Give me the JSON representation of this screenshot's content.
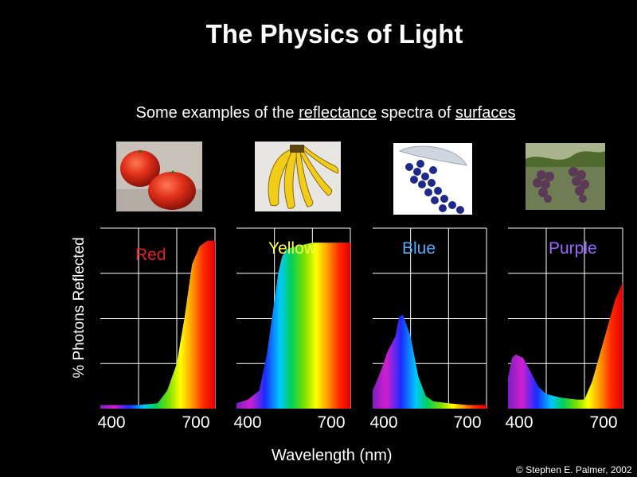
{
  "title": "The Physics of Light",
  "subtitle": {
    "prefix": "Some examples of the ",
    "word1": "reflectance",
    "middle": " spectra of ",
    "word2": "surfaces"
  },
  "credit": "© Stephen E. Palmer, 2002",
  "photos": [
    "tomatoes",
    "bananas",
    "blueberries",
    "grapes"
  ],
  "chart_data": [
    {
      "type": "area",
      "name": "Red",
      "label_color": "#dd2222",
      "xlabel": "Wavelength (nm)",
      "ylabel": "% Photons Reflected",
      "xlim": [
        400,
        700
      ],
      "ticks": [
        "400",
        "700"
      ],
      "ylim": [
        0,
        100
      ],
      "grid": true,
      "x": [
        400,
        450,
        500,
        550,
        575,
        600,
        620,
        640,
        660,
        680,
        700
      ],
      "y": [
        2,
        2,
        2,
        3,
        10,
        25,
        50,
        80,
        90,
        93,
        93
      ]
    },
    {
      "type": "area",
      "name": "Yellow",
      "label_color": "#ffff44",
      "xlabel": "Wavelength (nm)",
      "ylabel": "% Photons Reflected",
      "xlim": [
        400,
        700
      ],
      "ticks": [
        "400",
        "700"
      ],
      "ylim": [
        0,
        100
      ],
      "grid": true,
      "x": [
        400,
        430,
        460,
        480,
        500,
        510,
        520,
        530,
        540,
        560,
        580,
        600,
        650,
        700
      ],
      "y": [
        3,
        5,
        10,
        30,
        60,
        75,
        84,
        88,
        89,
        90,
        91,
        92,
        92,
        92
      ]
    },
    {
      "type": "area",
      "name": "Blue",
      "label_color": "#55aaff",
      "xlabel": "Wavelength (nm)",
      "ylabel": "% Photons Reflected",
      "xlim": [
        400,
        700
      ],
      "ticks": [
        "400",
        "700"
      ],
      "ylim": [
        0,
        100
      ],
      "grid": true,
      "x": [
        400,
        420,
        440,
        460,
        470,
        480,
        500,
        520,
        540,
        560,
        600,
        650,
        700
      ],
      "y": [
        10,
        20,
        32,
        40,
        51,
        52,
        40,
        18,
        7,
        4,
        3,
        2,
        2
      ]
    },
    {
      "type": "area",
      "name": "Purple",
      "label_color": "#9966ff",
      "xlabel": "Wavelength (nm)",
      "ylabel": "% Photons Reflected",
      "xlim": [
        400,
        700
      ],
      "ticks": [
        "400",
        "700"
      ],
      "ylim": [
        0,
        100
      ],
      "grid": true,
      "x": [
        400,
        410,
        420,
        440,
        460,
        480,
        500,
        540,
        580,
        600,
        620,
        640,
        660,
        680,
        700
      ],
      "y": [
        17,
        28,
        30,
        28,
        20,
        12,
        8,
        6,
        5,
        5,
        15,
        30,
        45,
        60,
        70
      ]
    }
  ]
}
